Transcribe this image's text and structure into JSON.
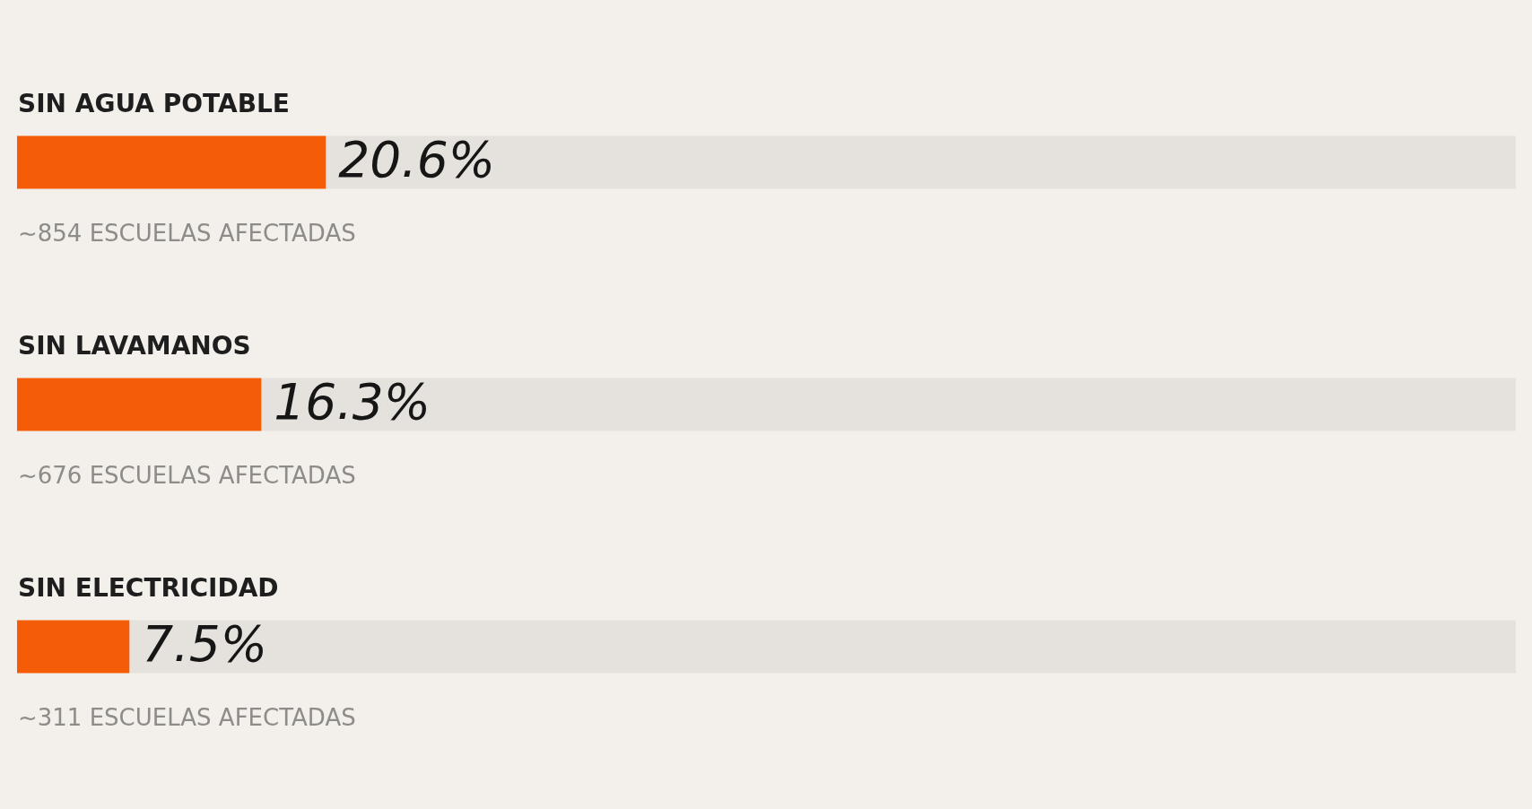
{
  "chart_data": {
    "type": "bar",
    "orientation": "horizontal",
    "stacked": true,
    "categories": [
      "SIN AGUA POTABLE",
      "SIN LAVAMANOS",
      "SIN ELECTRICIDAD"
    ],
    "series": [
      {
        "color": "#f55c07",
        "values": [
          20.6,
          16.3,
          7.5
        ],
        "value_labels": [
          "20.6%",
          "16.3%",
          "7.5%"
        ]
      },
      {
        "color": "#e5e1dc",
        "values": [
          79.4,
          83.7,
          92.5
        ]
      }
    ],
    "tick_labels": "y",
    "annotations": [
      "~854 ESCUELAS AFECTADAS",
      "~676 ESCUELAS AFECTADAS",
      "~311 ESCUELAS AFECTADAS"
    ]
  }
}
